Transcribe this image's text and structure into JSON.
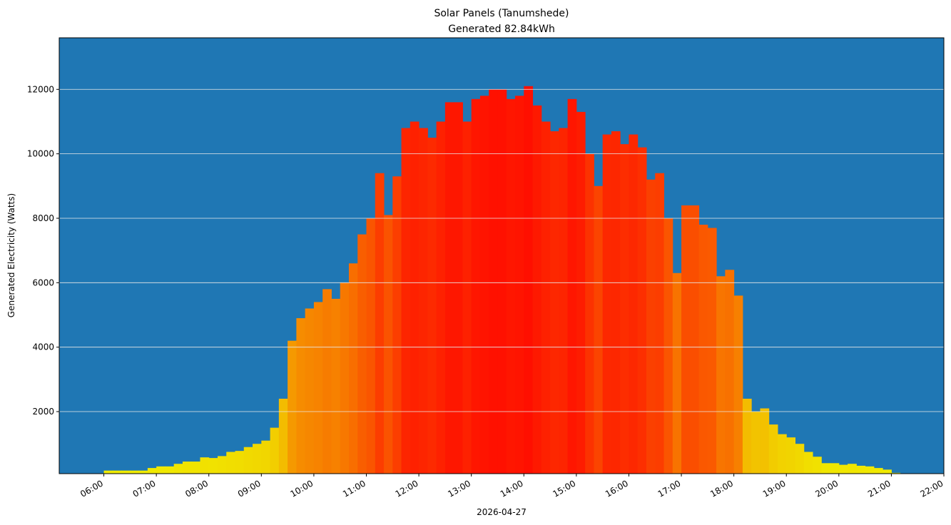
{
  "chart_data": {
    "type": "bar",
    "title": "Solar Panels (Tanumshede)",
    "subtitle": "Generated 82.84kWh",
    "xlabel": "2026-04-27",
    "ylabel": "Generated Electricity (Watts)",
    "xlim_hours": [
      5.15,
      22.0
    ],
    "ylim": [
      75,
      13600
    ],
    "grid": "horizontal",
    "background_color": "#1f77b4",
    "color_low": "#f0f000",
    "color_high": "#ff1000",
    "yticks": [
      2000,
      4000,
      6000,
      8000,
      10000,
      12000
    ],
    "ytick_labels": [
      "2000",
      "4000",
      "6000",
      "8000",
      "10000",
      "12000"
    ],
    "xticks_hours": [
      6,
      7,
      8,
      9,
      10,
      11,
      12,
      13,
      14,
      15,
      16,
      17,
      18,
      19,
      20,
      21,
      22
    ],
    "xtick_labels": [
      "06:00",
      "07:00",
      "08:00",
      "09:00",
      "10:00",
      "11:00",
      "12:00",
      "13:00",
      "14:00",
      "15:00",
      "16:00",
      "17:00",
      "18:00",
      "19:00",
      "20:00",
      "21:00",
      "22:00"
    ],
    "interval_minutes": 10,
    "start_hour": 5.1667,
    "values": [
      60,
      60,
      0,
      40,
      60,
      170,
      170,
      170,
      170,
      170,
      250,
      300,
      300,
      380,
      450,
      450,
      580,
      560,
      620,
      750,
      780,
      900,
      1000,
      1100,
      1500,
      2400,
      4200,
      4900,
      5200,
      5400,
      5800,
      5500,
      6000,
      6600,
      7500,
      8000,
      9400,
      8100,
      9300,
      10800,
      11000,
      10800,
      10500,
      11000,
      11600,
      11600,
      11000,
      11700,
      11800,
      12000,
      12000,
      11700,
      11800,
      12100,
      11500,
      11000,
      10700,
      10800,
      11700,
      11300,
      10000,
      9000,
      10600,
      10700,
      10300,
      10600,
      10200,
      9200,
      9400,
      8000,
      6300,
      8400,
      8400,
      7800,
      7700,
      6200,
      6400,
      5600,
      2400,
      2000,
      2100,
      1600,
      1300,
      1200,
      1000,
      750,
      600,
      400,
      400,
      350,
      380,
      320,
      300,
      250,
      200,
      100,
      60
    ]
  }
}
